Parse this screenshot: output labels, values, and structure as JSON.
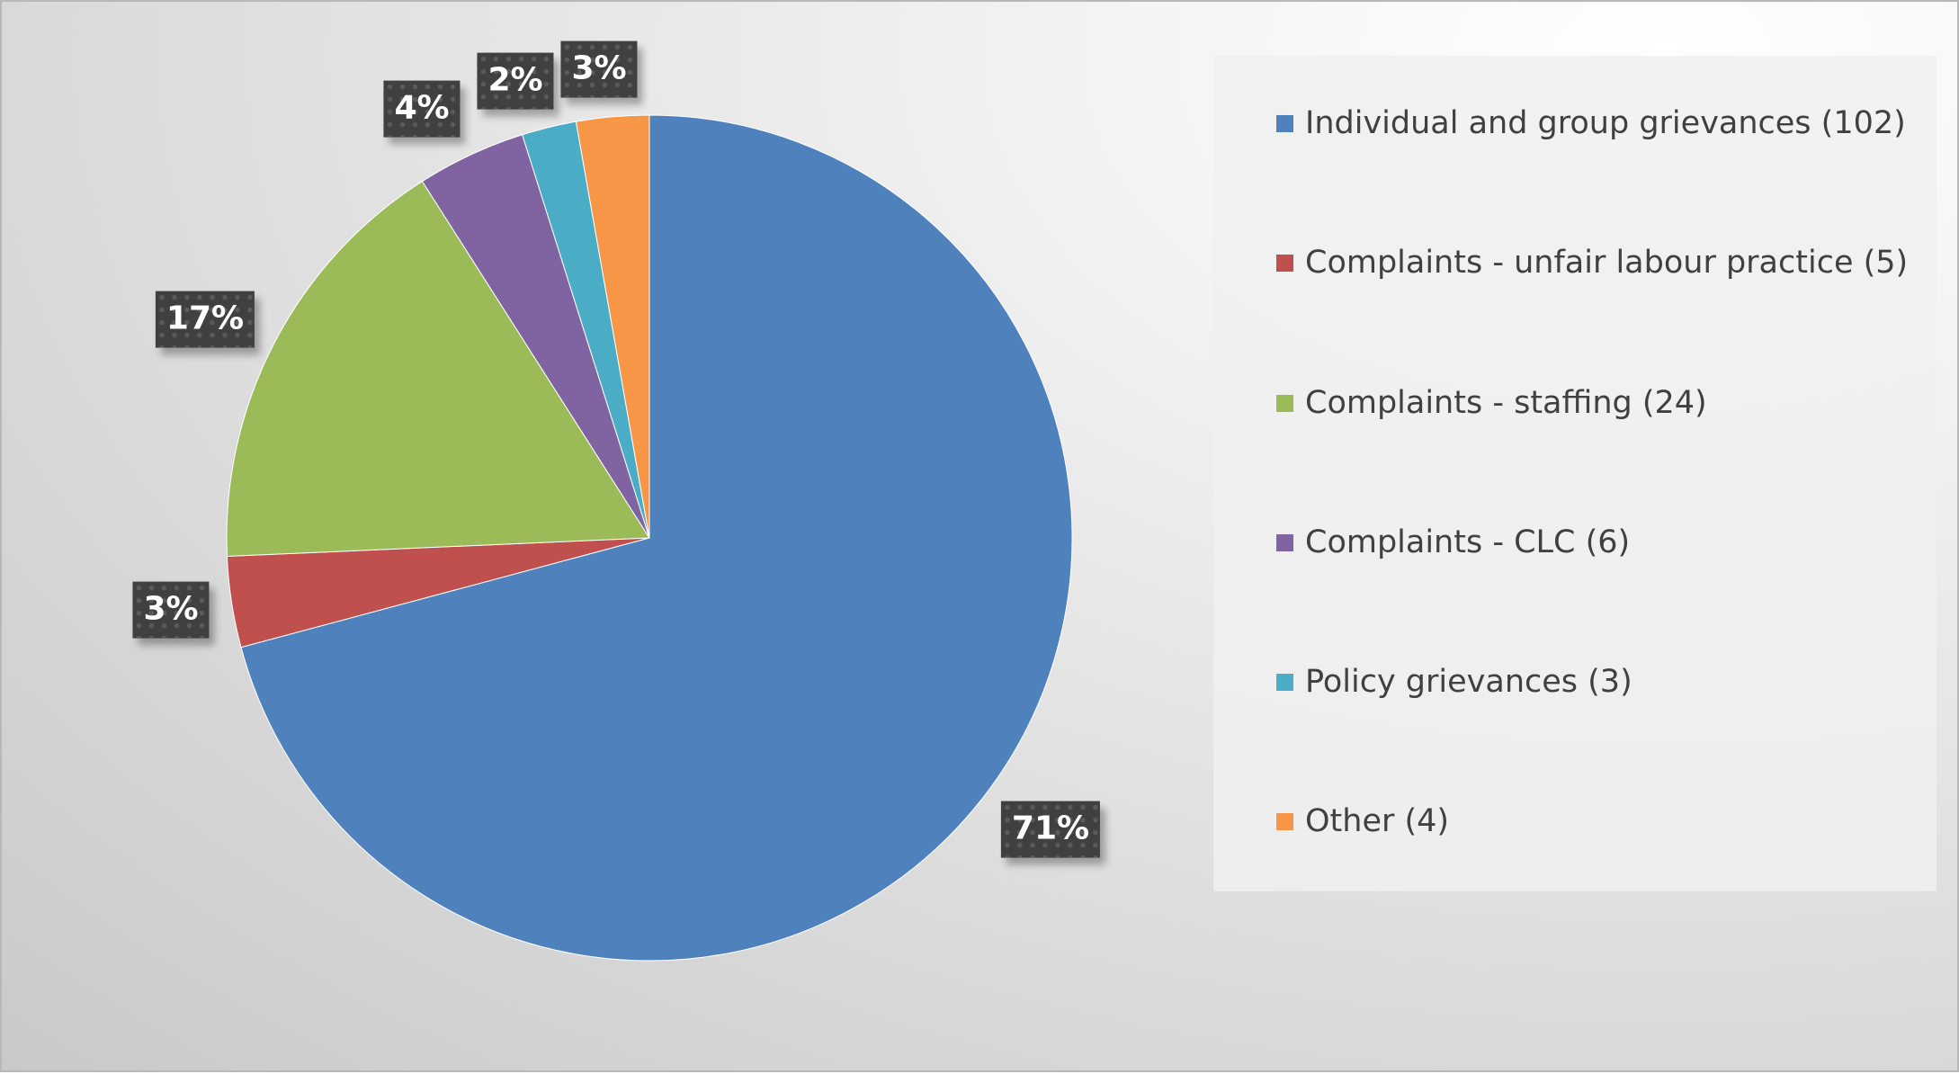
{
  "chart_data": {
    "type": "pie",
    "start_angle": "12 o'clock",
    "direction": "clockwise",
    "legend_position": "right",
    "slices": [
      {
        "label": "Individual and group grievances (102)",
        "value": 102,
        "percent_label": "71%",
        "color": "#4F81BD"
      },
      {
        "label": "Complaints - unfair labour practice (5)",
        "value": 5,
        "percent_label": "3%",
        "color": "#C0504D"
      },
      {
        "label": "Complaints - staffing (24)",
        "value": 24,
        "percent_label": "17%",
        "color": "#9BBB59"
      },
      {
        "label": "Complaints - CLC (6)",
        "value": 6,
        "percent_label": "4%",
        "color": "#8064A2"
      },
      {
        "label": "Policy grievances (3)",
        "value": 3,
        "percent_label": "2%",
        "color": "#4BACC6"
      },
      {
        "label": "Other (4)",
        "value": 4,
        "percent_label": "3%",
        "color": "#F79646"
      }
    ]
  }
}
